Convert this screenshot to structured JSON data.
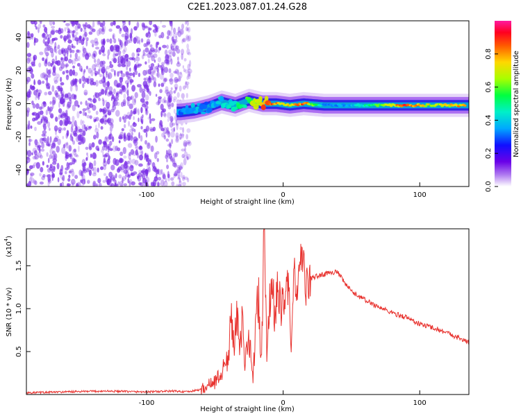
{
  "title": "C2E1.2023.087.01.24.G28",
  "colors": {
    "snr_line": "#e8322e",
    "scatter": "#7a2ee6"
  },
  "spectrogram": {
    "xlabel": "Height of straight line (km)",
    "ylabel": "Frequency (Hz)",
    "xlim": [
      -188,
      136
    ],
    "ylim": [
      -50,
      50
    ],
    "x_ticks": [
      "-100",
      "0",
      "100"
    ],
    "x_tick_values": [
      -100,
      0,
      100
    ],
    "y_ticks": [
      "40",
      "20",
      "0",
      "-20",
      "-40"
    ],
    "y_tick_values": [
      40,
      20,
      0,
      -20,
      -40
    ]
  },
  "colorbar": {
    "label": "Normalized spectral amplitude",
    "ticks": [
      "0.0",
      "0.2",
      "0.4",
      "0.6",
      "0.8"
    ],
    "tick_values": [
      0.0,
      0.2,
      0.4,
      0.6,
      0.8
    ],
    "range": [
      0.0,
      1.0
    ]
  },
  "snr_plot": {
    "xlabel": "Height of straight line (km)",
    "ylabel": "SNR (10 * v/v)",
    "multiplier": "(x10",
    "multiplier_exp": "4",
    "multiplier_close": ")",
    "xlim": [
      -188,
      136
    ],
    "ylim": [
      0,
      1.93
    ],
    "x_ticks": [
      "-100",
      "0",
      "100"
    ],
    "x_tick_values": [
      -100,
      0,
      100
    ],
    "y_ticks": [
      "0.5",
      "1.0",
      "1.5"
    ],
    "y_tick_values": [
      0.5,
      1.0,
      1.5
    ]
  },
  "chart_data": [
    {
      "type": "heatmap",
      "title": "C2E1.2023.087.01.24.G28",
      "xlabel": "Height of straight line (km)",
      "ylabel": "Frequency (Hz)",
      "xlim": [
        -188,
        136
      ],
      "ylim": [
        -50,
        50
      ],
      "ridge": {
        "x": [
          -75,
          -65,
          -55,
          -45,
          -35,
          -25,
          -15,
          -5,
          5,
          15,
          30,
          50,
          70,
          90,
          110,
          136
        ],
        "y": [
          -5,
          -4,
          -2,
          1,
          -1,
          2,
          0,
          0,
          -1,
          0,
          -1,
          -1,
          -1,
          -1,
          -1,
          -1
        ],
        "amplitude": [
          0.35,
          0.4,
          0.35,
          0.45,
          0.5,
          0.6,
          0.9,
          0.85,
          0.8,
          0.9,
          0.35,
          0.4,
          0.6,
          0.95,
          0.7,
          0.85
        ]
      }
    },
    {
      "type": "line",
      "xlabel": "Height of straight line (km)",
      "ylabel": "SNR (10 * v/v)",
      "xlim": [
        -188,
        136
      ],
      "ylim": [
        0,
        1.93
      ],
      "series": [
        {
          "x": [
            -188,
            -160,
            -130,
            -100,
            -80,
            -70,
            -60,
            -50,
            -45,
            -40,
            -38,
            -36,
            -34,
            -32,
            -30,
            -28,
            -26,
            -24,
            -22,
            -20,
            -18,
            -16,
            -14,
            -12,
            -10,
            -8,
            -6,
            -4,
            -2,
            0,
            2,
            4,
            6,
            8,
            10,
            12,
            14,
            16,
            18,
            20,
            25,
            30,
            35,
            40,
            45,
            50,
            60,
            70,
            80,
            90,
            100,
            110,
            120,
            130,
            136
          ],
          "y": [
            0.02,
            0.03,
            0.04,
            0.03,
            0.04,
            0.03,
            0.06,
            0.15,
            0.25,
            0.45,
            0.9,
            0.6,
            1.08,
            0.4,
            0.85,
            0.3,
            0.75,
            0.55,
            0.15,
            0.9,
            1.1,
            0.3,
            1.93,
            0.5,
            1.0,
            1.4,
            0.8,
            1.2,
            1.1,
            1.0,
            1.3,
            1.25,
            0.5,
            1.5,
            1.1,
            1.35,
            1.8,
            1.2,
            1.3,
            1.35,
            1.38,
            1.4,
            1.43,
            1.42,
            1.3,
            1.2,
            1.1,
            1.02,
            0.95,
            0.9,
            0.82,
            0.78,
            0.72,
            0.65,
            0.6
          ]
        }
      ]
    }
  ]
}
